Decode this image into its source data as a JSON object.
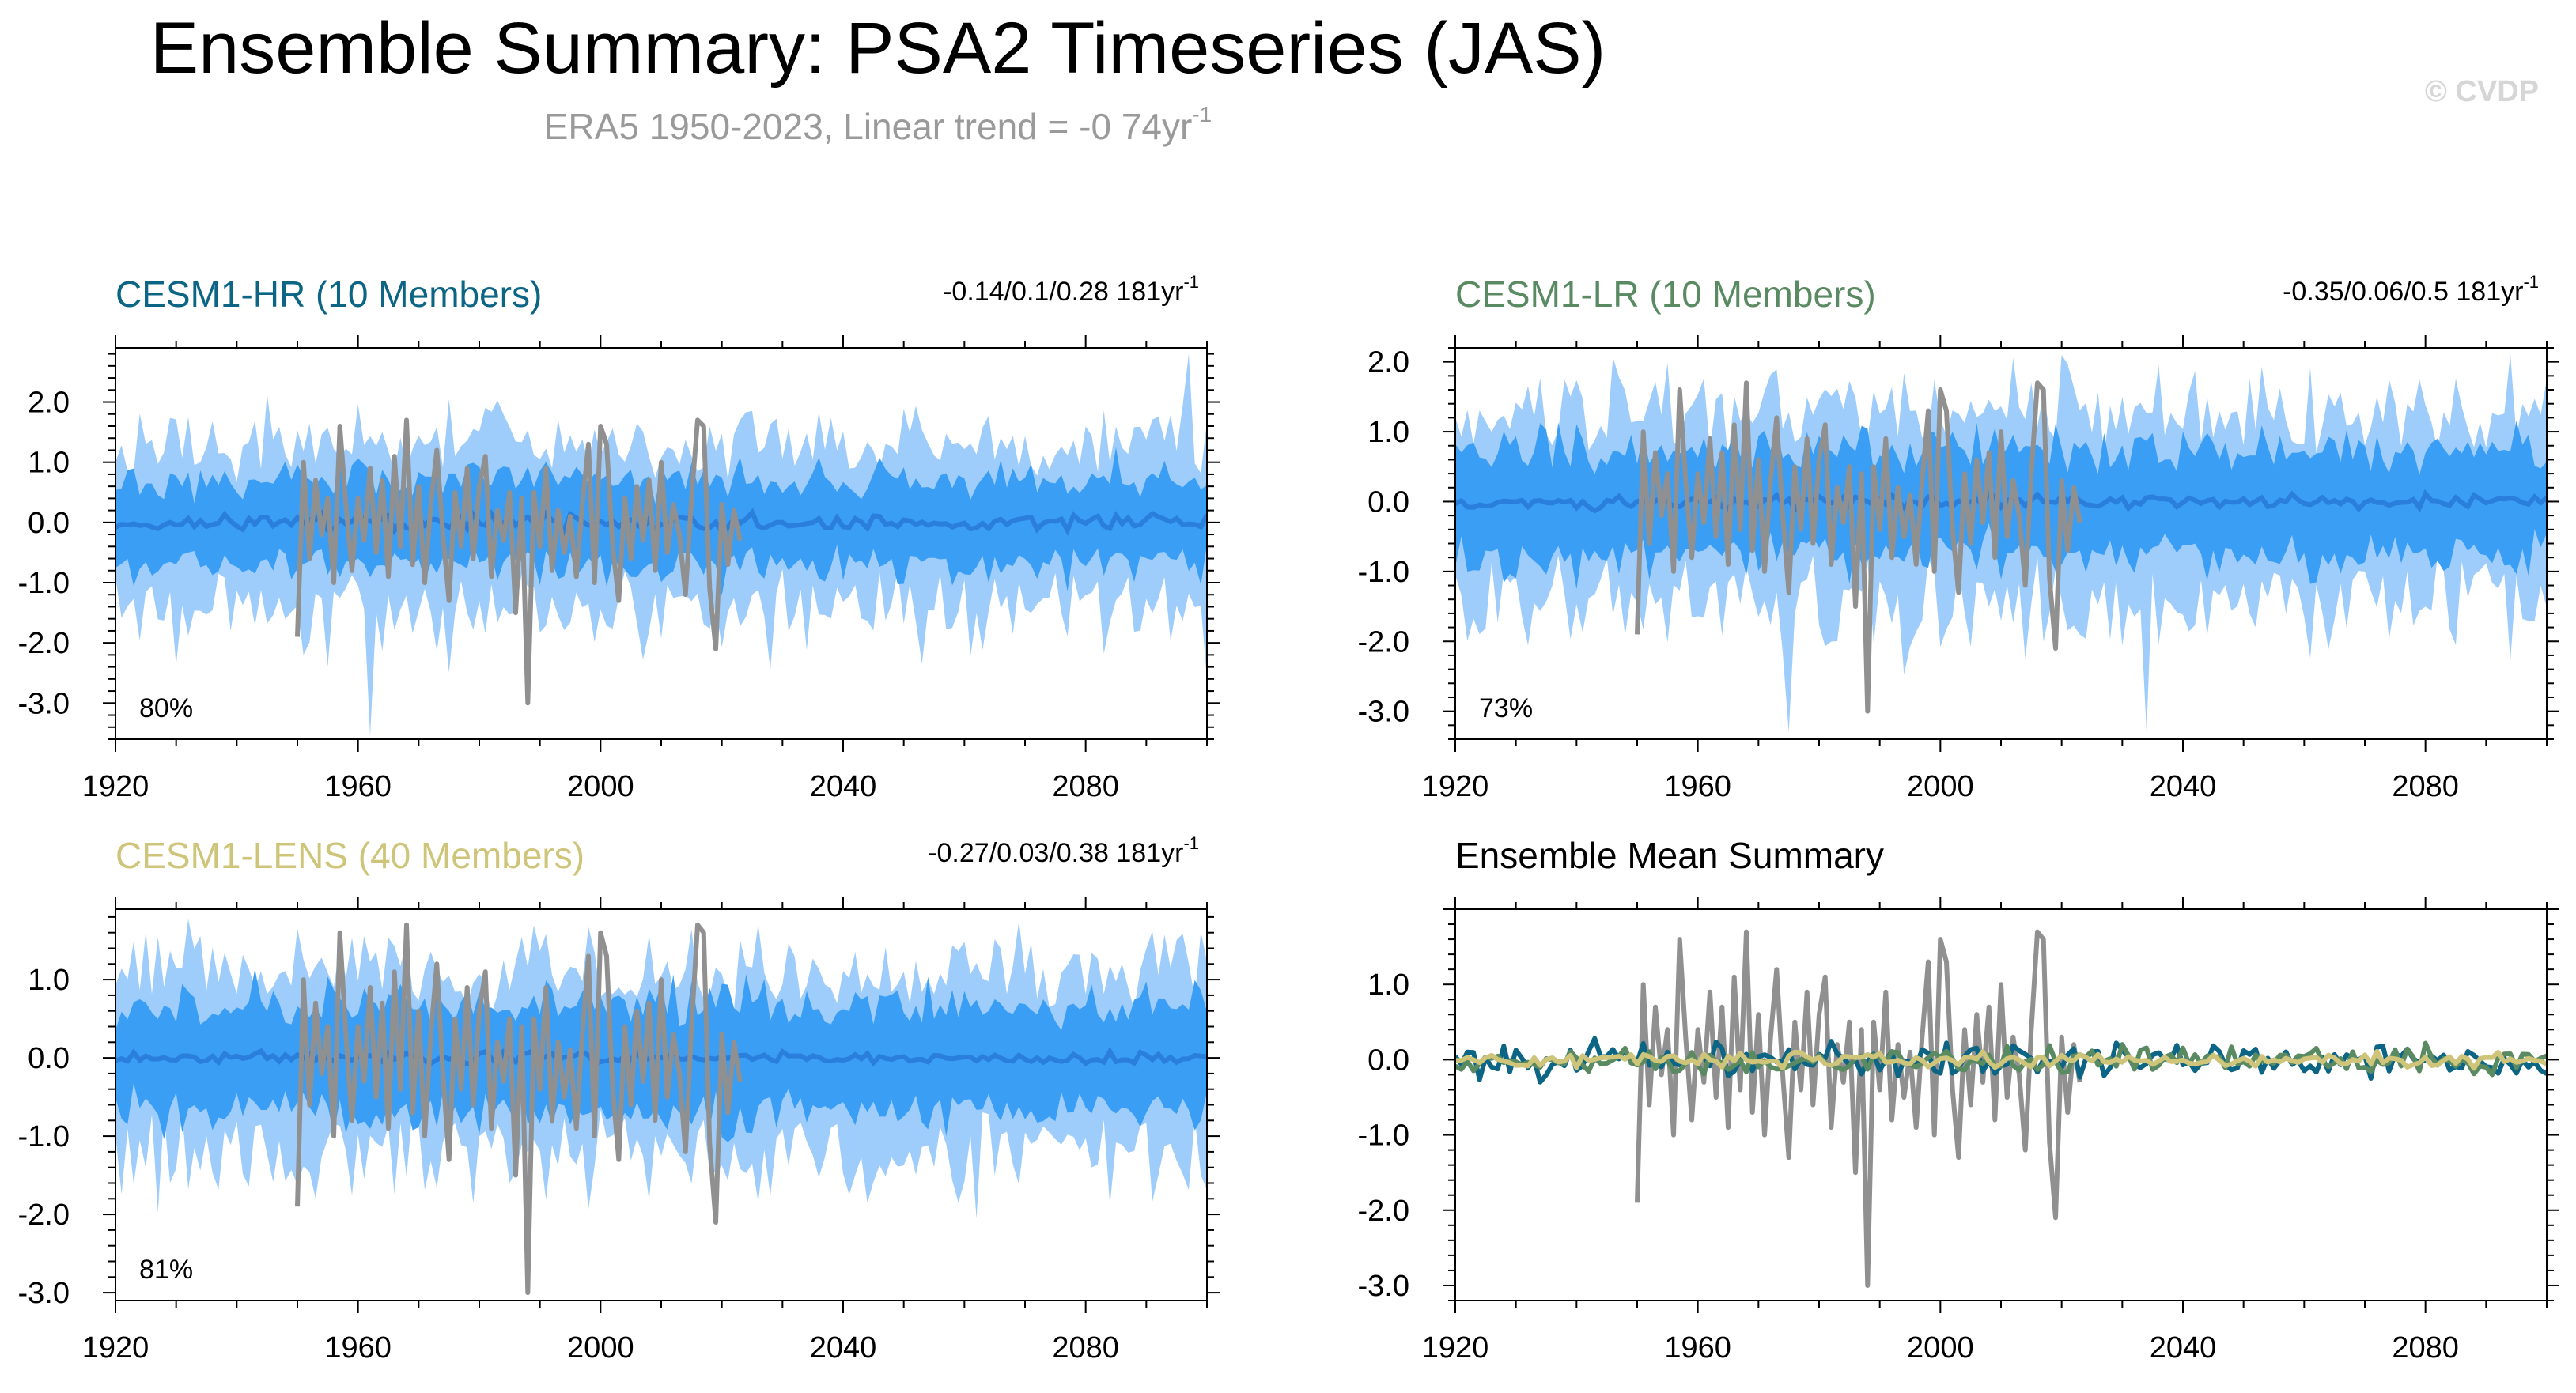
{
  "header": {
    "title": "Ensemble Summary: PSA2 Timeseries (JAS)",
    "subtitle_main": "ERA5 1950-2023, Linear trend = -0 74yr",
    "subtitle_sup": "-1",
    "watermark": "© CVDP"
  },
  "colors": {
    "band_outer": "#9fcdfb",
    "band_inner": "#3a9ef5",
    "ens_mean": "#2a7fdc",
    "obs": "#909090",
    "hr": "#0c6584",
    "lr": "#5a8a62",
    "lens": "#cfc57a",
    "axis": "#000000"
  },
  "chart_data": [
    {
      "id": "hr",
      "type": "area",
      "title": "CESM1-HR (10 Members)",
      "title_color": "#0c6584",
      "stat_text": "-0.14/0.1/0.28 181yr",
      "stat_sup": "-1",
      "pct_label": "80%",
      "xlim": [
        1920,
        2100
      ],
      "ylim": [
        -3.6,
        2.9
      ],
      "x_ticks": [
        1920,
        1960,
        2000,
        2040,
        2080
      ],
      "y_ticks": [
        2.0,
        1.0,
        0.0,
        -1.0,
        -2.0,
        -3.0
      ],
      "y_tick_labels": [
        "2.0",
        "1.0",
        "0.0",
        "-1.0",
        "-2.0",
        "-3.0"
      ],
      "outer_amp": 1.8,
      "inner_amp": 0.7,
      "mean_amp": 0.2,
      "seed": 11,
      "spikes": [
        [
          1962,
          -3.55
        ],
        [
          2097,
          2.8
        ],
        [
          2100,
          -2.6
        ],
        [
          1951,
          -2.2
        ]
      ]
    },
    {
      "id": "lr",
      "type": "area",
      "title": "CESM1-LR (10 Members)",
      "title_color": "#5a8a62",
      "stat_text": "-0.35/0.06/0.5 181yr",
      "stat_sup": "-1",
      "pct_label": "73%",
      "xlim": [
        1920,
        2100
      ],
      "ylim": [
        -3.4,
        2.2
      ],
      "x_ticks": [
        1920,
        1960,
        2000,
        2040,
        2080
      ],
      "y_ticks": [
        2.0,
        1.0,
        0.0,
        -1.0,
        -2.0,
        -3.0
      ],
      "y_tick_labels": [
        "2.0",
        "1.0",
        "0.0",
        "-1.0",
        "-2.0",
        "-3.0"
      ],
      "outer_amp": 1.8,
      "inner_amp": 0.75,
      "mean_amp": 0.15,
      "seed": 23,
      "spikes": [
        [
          1975,
          -3.3
        ],
        [
          2034,
          -3.3
        ]
      ]
    },
    {
      "id": "lens",
      "type": "area",
      "title": "CESM1-LENS (40 Members)",
      "title_color": "#cfc57a",
      "stat_text": "-0.27/0.03/0.38 181yr",
      "stat_sup": "-1",
      "pct_label": "81%",
      "xlim": [
        1920,
        2100
      ],
      "ylim": [
        -3.1,
        1.9
      ],
      "x_ticks": [
        1920,
        1960,
        2000,
        2040,
        2080
      ],
      "y_ticks": [
        1.0,
        0.0,
        -1.0,
        -2.0,
        -3.0
      ],
      "y_tick_labels": [
        "1.0",
        "0.0",
        "-1.0",
        "-2.0",
        "-3.0"
      ],
      "outer_amp": 1.5,
      "inner_amp": 0.7,
      "mean_amp": 0.12,
      "seed": 37,
      "spikes": []
    },
    {
      "id": "mean",
      "type": "line",
      "title": "Ensemble Mean Summary",
      "title_color": "#000000",
      "xlim": [
        1920,
        2100
      ],
      "ylim": [
        -3.2,
        2.0
      ],
      "x_ticks": [
        1920,
        1960,
        2000,
        2040,
        2080
      ],
      "y_ticks": [
        1.0,
        0.0,
        -1.0,
        -2.0,
        -3.0
      ],
      "y_tick_labels": [
        "1.0",
        "0.0",
        "-1.0",
        "-2.0",
        "-3.0"
      ],
      "series_amp": {
        "hr": 0.25,
        "lr": 0.2,
        "lens": 0.1
      }
    }
  ],
  "observed": {
    "name": "ERA5",
    "years": [
      1950,
      1951,
      1952,
      1953,
      1954,
      1955,
      1956,
      1957,
      1958,
      1959,
      1960,
      1961,
      1962,
      1963,
      1964,
      1965,
      1966,
      1967,
      1968,
      1969,
      1970,
      1971,
      1972,
      1973,
      1974,
      1975,
      1976,
      1977,
      1978,
      1979,
      1980,
      1981,
      1982,
      1983,
      1984,
      1985,
      1986,
      1987,
      1988,
      1989,
      1990,
      1991,
      1992,
      1993,
      1994,
      1995,
      1996,
      1997,
      1998,
      1999,
      2000,
      2001,
      2002,
      2003,
      2004,
      2005,
      2006,
      2007,
      2008,
      2009,
      2010,
      2011,
      2012,
      2013,
      2014,
      2015,
      2016,
      2017,
      2018,
      2019,
      2020,
      2021,
      2022,
      2023
    ],
    "values": [
      -1.9,
      1.0,
      -0.6,
      0.7,
      -0.2,
      0.4,
      -1.0,
      1.6,
      0.3,
      -0.8,
      0.4,
      -0.3,
      0.9,
      -0.5,
      0.7,
      -0.9,
      1.1,
      -0.4,
      1.7,
      -0.7,
      0.6,
      -1.0,
      0.3,
      1.2,
      -0.2,
      -1.3,
      0.5,
      -0.4,
      0.9,
      -0.6,
      0.6,
      1.1,
      -0.9,
      0.2,
      -0.3,
      0.5,
      -1.5,
      0.4,
      -3.0,
      0.5,
      -0.4,
      0.9,
      -0.8,
      0.2,
      -0.5,
      0.1,
      -0.9,
      0.3,
      1.3,
      -1.0,
      1.6,
      1.3,
      -0.4,
      -1.3,
      0.4,
      -0.6,
      0.6,
      -0.3,
      0.7,
      -0.8,
      1.0,
      -0.5,
      0.3,
      -0.2,
      -1.2,
      0.4,
      1.7,
      1.6,
      -1.1,
      -2.1,
      0.3,
      -0.7,
      0.2,
      -0.3
    ]
  }
}
